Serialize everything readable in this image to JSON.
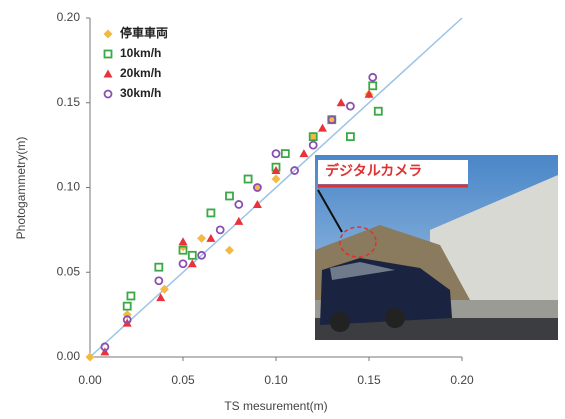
{
  "chart_data": {
    "type": "scatter",
    "x_label": "TS mesurement(m)",
    "y_label": "Photogammetry(m)",
    "annotation": "デジタルカメラ",
    "xlim": [
      0,
      0.2
    ],
    "ylim": [
      0,
      0.2
    ],
    "xticks": [
      {
        "value": 0,
        "label": "0.00"
      },
      {
        "value": 0.05,
        "label": "0.05"
      },
      {
        "value": 0.1,
        "label": "0.10"
      },
      {
        "value": 0.15,
        "label": "0.15"
      },
      {
        "value": 0.2,
        "label": "0.20"
      }
    ],
    "yticks": [
      {
        "value": 0,
        "label": "0.00"
      },
      {
        "value": 0.05,
        "label": "0.05"
      },
      {
        "value": 0.1,
        "label": "0.10"
      },
      {
        "value": 0.15,
        "label": "0.15"
      },
      {
        "value": 0.2,
        "label": "0.20"
      }
    ],
    "reference_line_color": "#9cc3e6",
    "series": [
      {
        "name": "停車車両",
        "color": "#f5b942",
        "marker": "diamond",
        "x": [
          0,
          0.02,
          0.04,
          0.05,
          0.06,
          0.075,
          0.09,
          0.1,
          0.12,
          0.13,
          0.15
        ],
        "values": [
          0,
          0.025,
          0.04,
          0.065,
          0.07,
          0.063,
          0.1,
          0.105,
          0.13,
          0.14,
          0.155
        ]
      },
      {
        "name": "10km/h",
        "color": "#3aa845",
        "marker": "square",
        "x": [
          0.02,
          0.022,
          0.037,
          0.05,
          0.055,
          0.065,
          0.075,
          0.085,
          0.1,
          0.105,
          0.12,
          0.13,
          0.14,
          0.155,
          0.152
        ],
        "values": [
          0.03,
          0.036,
          0.053,
          0.063,
          0.06,
          0.085,
          0.095,
          0.105,
          0.112,
          0.12,
          0.13,
          0.14,
          0.13,
          0.145,
          0.16
        ]
      },
      {
        "name": "20km/h",
        "color": "#e8333a",
        "marker": "triangle",
        "x": [
          0.008,
          0.02,
          0.038,
          0.05,
          0.055,
          0.065,
          0.08,
          0.09,
          0.1,
          0.115,
          0.125,
          0.135,
          0.15
        ],
        "values": [
          0.003,
          0.02,
          0.035,
          0.068,
          0.055,
          0.07,
          0.08,
          0.09,
          0.11,
          0.12,
          0.135,
          0.15,
          0.155
        ]
      },
      {
        "name": "30km/h",
        "color": "#8a4fb0",
        "marker": "circle",
        "x": [
          0.008,
          0.02,
          0.037,
          0.05,
          0.06,
          0.07,
          0.08,
          0.09,
          0.1,
          0.11,
          0.12,
          0.13,
          0.14,
          0.152
        ],
        "values": [
          0.006,
          0.022,
          0.045,
          0.055,
          0.06,
          0.075,
          0.09,
          0.1,
          0.12,
          0.11,
          0.125,
          0.14,
          0.148,
          0.165
        ]
      }
    ]
  }
}
